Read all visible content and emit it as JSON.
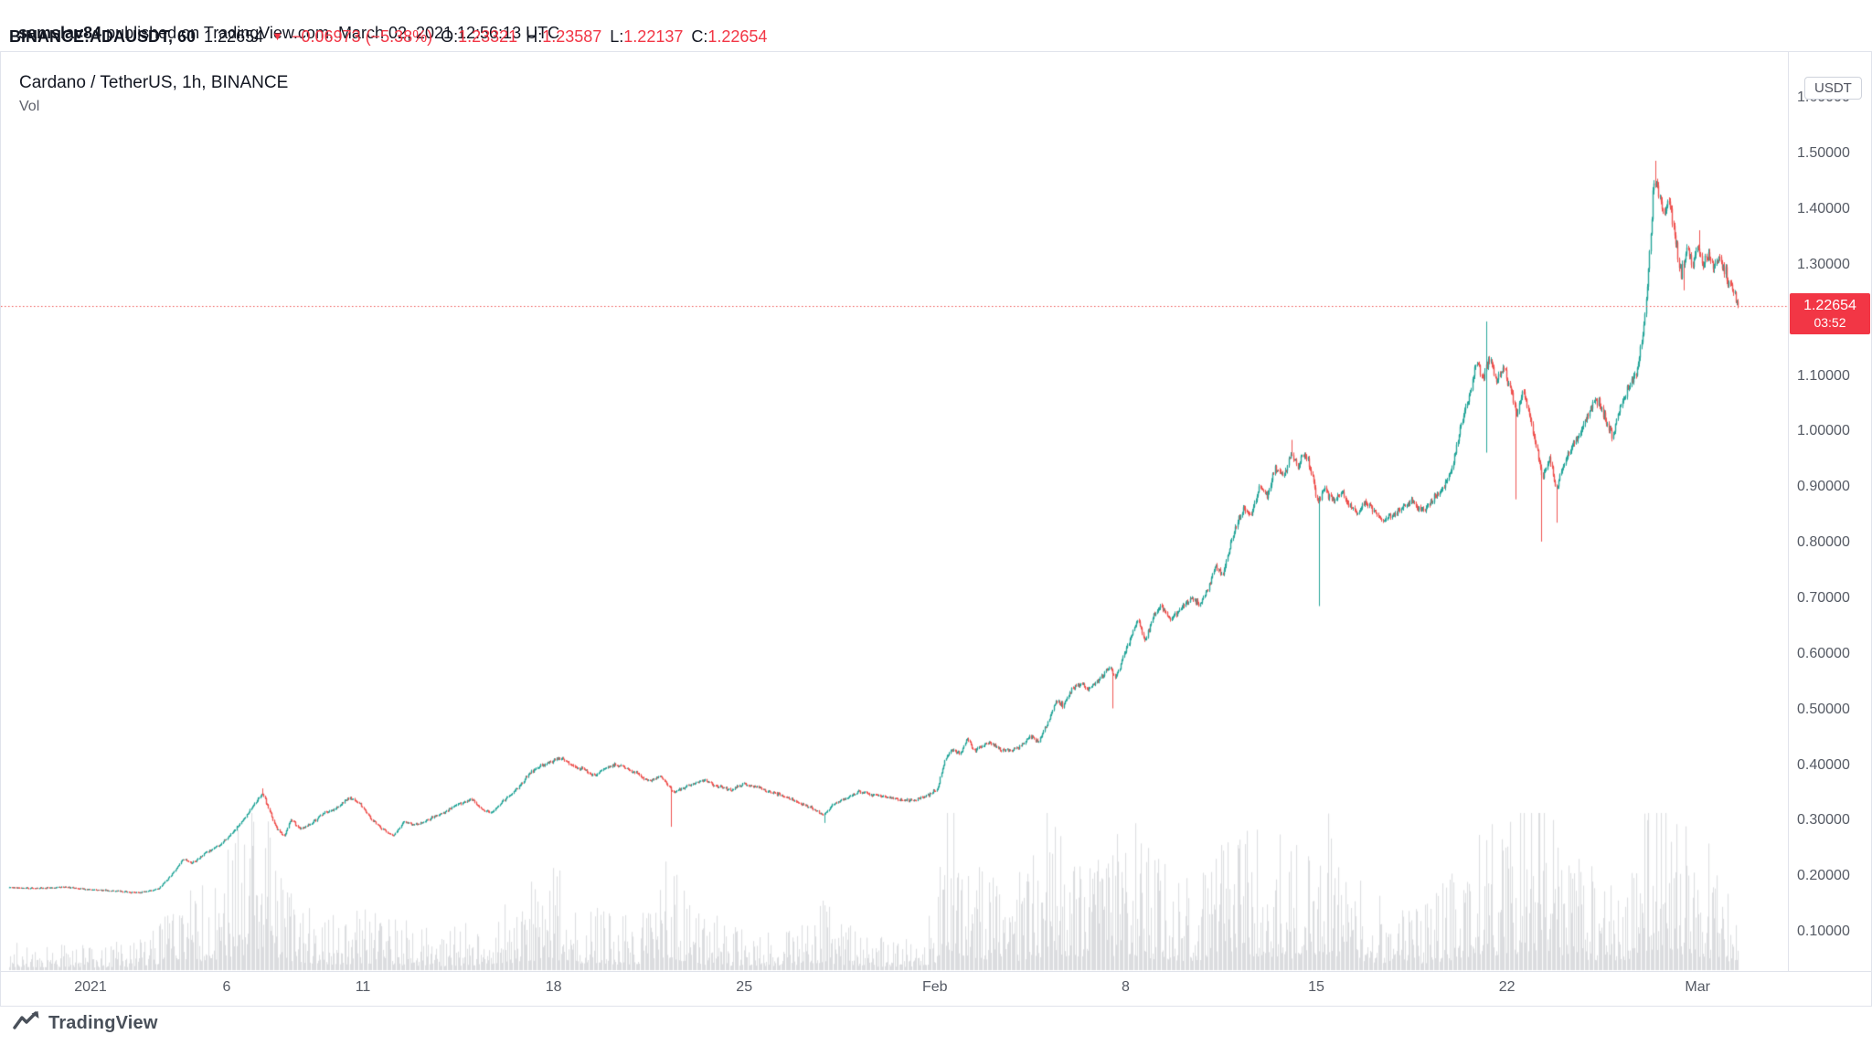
{
  "header": {
    "line1": {
      "user": "samslav84",
      "rest": " published on TradingView.com, March 02, 2021 12:56:13 UTC"
    },
    "line2": {
      "symbol": "BINANCE:ADAUSDT, 60",
      "price": "1.22654",
      "direction": "▼",
      "change": "−0.06973 (−5.38%)",
      "ohlc": [
        {
          "k": "O:",
          "v": "1.23321"
        },
        {
          "k": "H:",
          "v": "1.23587"
        },
        {
          "k": "L:",
          "v": "1.22137"
        },
        {
          "k": "C:",
          "v": "1.22654"
        }
      ]
    }
  },
  "legend": {
    "title": "Cardano / TetherUS, 1h, BINANCE",
    "indicator": "Vol"
  },
  "price_axis": {
    "currency_button": "USDT",
    "labels": [
      {
        "text": "1.60000",
        "price": 1.6
      },
      {
        "text": "1.50000",
        "price": 1.5
      },
      {
        "text": "1.40000",
        "price": 1.4
      },
      {
        "text": "1.30000",
        "price": 1.3
      },
      {
        "text": "1.20000",
        "price": 1.2
      },
      {
        "text": "1.10000",
        "price": 1.1
      },
      {
        "text": "1.00000",
        "price": 1.0
      },
      {
        "text": "0.90000",
        "price": 0.9
      },
      {
        "text": "0.80000",
        "price": 0.8
      },
      {
        "text": "0.70000",
        "price": 0.7
      },
      {
        "text": "0.60000",
        "price": 0.6
      },
      {
        "text": "0.50000",
        "price": 0.5
      },
      {
        "text": "0.40000",
        "price": 0.4
      },
      {
        "text": "0.30000",
        "price": 0.3
      },
      {
        "text": "0.20000",
        "price": 0.2
      },
      {
        "text": "0.10000",
        "price": 0.1
      }
    ],
    "last_price_badge": {
      "price": "1.22654",
      "countdown": "03:52",
      "color": "#f23645"
    }
  },
  "time_axis": {
    "labels": [
      {
        "text": "2021",
        "t": 3
      },
      {
        "text": "6",
        "t": 8
      },
      {
        "text": "11",
        "t": 13
      },
      {
        "text": "18",
        "t": 20
      },
      {
        "text": "25",
        "t": 27
      },
      {
        "text": "Feb",
        "t": 34
      },
      {
        "text": "8",
        "t": 41
      },
      {
        "text": "15",
        "t": 48
      },
      {
        "text": "22",
        "t": 55
      },
      {
        "text": "Mar",
        "t": 62
      }
    ]
  },
  "footer": {
    "brand": "TradingView"
  },
  "chart_data": {
    "type": "candlestick+volume",
    "title": "Cardano / TetherUS, 1h, BINANCE",
    "exchange": "BINANCE",
    "symbol": "ADAUSDT",
    "interval": "1h",
    "x_axis": {
      "start": "2020-12-29 00:00",
      "end": "2021-03-02 12:00",
      "unit": "days_since_start",
      "total_days": 63.5
    },
    "y_axis": {
      "min_visible": 0.03,
      "max_visible": 1.68,
      "tick_step": 0.1,
      "currency": "USDT"
    },
    "last_price": 1.22654,
    "open": 1.23321,
    "high": 1.23587,
    "low": 1.22137,
    "close": 1.22654,
    "change": -0.06973,
    "change_pct": -5.38,
    "price_path": [
      [
        0,
        0.18
      ],
      [
        1,
        0.178
      ],
      [
        2,
        0.181
      ],
      [
        3,
        0.176
      ],
      [
        4,
        0.173
      ],
      [
        4.8,
        0.17
      ],
      [
        5.5,
        0.178
      ],
      [
        6.0,
        0.205
      ],
      [
        6.4,
        0.232
      ],
      [
        6.7,
        0.222
      ],
      [
        7.2,
        0.242
      ],
      [
        7.6,
        0.252
      ],
      [
        8.0,
        0.268
      ],
      [
        8.5,
        0.295
      ],
      [
        9.0,
        0.33
      ],
      [
        9.3,
        0.349
      ],
      [
        9.5,
        0.325
      ],
      [
        9.8,
        0.288
      ],
      [
        10.1,
        0.272
      ],
      [
        10.35,
        0.303
      ],
      [
        10.7,
        0.285
      ],
      [
        11.1,
        0.295
      ],
      [
        11.5,
        0.312
      ],
      [
        12.0,
        0.322
      ],
      [
        12.5,
        0.342
      ],
      [
        12.9,
        0.33
      ],
      [
        13.3,
        0.302
      ],
      [
        13.7,
        0.285
      ],
      [
        14.1,
        0.273
      ],
      [
        14.5,
        0.298
      ],
      [
        15.0,
        0.292
      ],
      [
        15.5,
        0.305
      ],
      [
        16.0,
        0.316
      ],
      [
        16.5,
        0.33
      ],
      [
        17.0,
        0.338
      ],
      [
        17.3,
        0.322
      ],
      [
        17.7,
        0.314
      ],
      [
        18.2,
        0.338
      ],
      [
        18.7,
        0.36
      ],
      [
        19.1,
        0.385
      ],
      [
        19.5,
        0.398
      ],
      [
        20.0,
        0.408
      ],
      [
        20.3,
        0.412
      ],
      [
        20.7,
        0.398
      ],
      [
        21.1,
        0.392
      ],
      [
        21.5,
        0.38
      ],
      [
        21.9,
        0.395
      ],
      [
        22.3,
        0.401
      ],
      [
        22.7,
        0.393
      ],
      [
        23.1,
        0.384
      ],
      [
        23.5,
        0.371
      ],
      [
        23.9,
        0.381
      ],
      [
        24.2,
        0.363
      ],
      [
        24.4,
        0.35
      ],
      [
        24.7,
        0.358
      ],
      [
        25.1,
        0.366
      ],
      [
        25.5,
        0.373
      ],
      [
        26.0,
        0.361
      ],
      [
        26.5,
        0.356
      ],
      [
        27.0,
        0.367
      ],
      [
        27.5,
        0.359
      ],
      [
        28.0,
        0.351
      ],
      [
        28.5,
        0.343
      ],
      [
        29.0,
        0.332
      ],
      [
        29.5,
        0.322
      ],
      [
        29.9,
        0.31
      ],
      [
        30.3,
        0.331
      ],
      [
        30.8,
        0.342
      ],
      [
        31.2,
        0.352
      ],
      [
        31.7,
        0.347
      ],
      [
        32.2,
        0.342
      ],
      [
        32.7,
        0.337
      ],
      [
        33.2,
        0.336
      ],
      [
        33.7,
        0.345
      ],
      [
        34.1,
        0.358
      ],
      [
        34.35,
        0.408
      ],
      [
        34.6,
        0.428
      ],
      [
        34.9,
        0.42
      ],
      [
        35.2,
        0.448
      ],
      [
        35.45,
        0.425
      ],
      [
        35.7,
        0.434
      ],
      [
        36.0,
        0.441
      ],
      [
        36.4,
        0.428
      ],
      [
        36.8,
        0.424
      ],
      [
        37.2,
        0.438
      ],
      [
        37.5,
        0.452
      ],
      [
        37.8,
        0.441
      ],
      [
        38.1,
        0.472
      ],
      [
        38.45,
        0.518
      ],
      [
        38.7,
        0.508
      ],
      [
        39.0,
        0.534
      ],
      [
        39.3,
        0.548
      ],
      [
        39.6,
        0.536
      ],
      [
        40.0,
        0.552
      ],
      [
        40.4,
        0.576
      ],
      [
        40.6,
        0.556
      ],
      [
        40.9,
        0.595
      ],
      [
        41.2,
        0.632
      ],
      [
        41.45,
        0.662
      ],
      [
        41.7,
        0.622
      ],
      [
        42.0,
        0.665
      ],
      [
        42.3,
        0.688
      ],
      [
        42.6,
        0.662
      ],
      [
        43.0,
        0.681
      ],
      [
        43.4,
        0.701
      ],
      [
        43.7,
        0.688
      ],
      [
        44.0,
        0.716
      ],
      [
        44.3,
        0.758
      ],
      [
        44.55,
        0.742
      ],
      [
        44.8,
        0.792
      ],
      [
        45.1,
        0.836
      ],
      [
        45.35,
        0.866
      ],
      [
        45.6,
        0.848
      ],
      [
        45.9,
        0.902
      ],
      [
        46.2,
        0.884
      ],
      [
        46.5,
        0.938
      ],
      [
        46.8,
        0.92
      ],
      [
        47.05,
        0.958
      ],
      [
        47.3,
        0.94
      ],
      [
        47.6,
        0.958
      ],
      [
        47.85,
        0.918
      ],
      [
        48.05,
        0.872
      ],
      [
        48.3,
        0.898
      ],
      [
        48.6,
        0.876
      ],
      [
        48.9,
        0.891
      ],
      [
        49.2,
        0.868
      ],
      [
        49.5,
        0.852
      ],
      [
        49.8,
        0.874
      ],
      [
        50.1,
        0.858
      ],
      [
        50.45,
        0.838
      ],
      [
        50.8,
        0.85
      ],
      [
        51.1,
        0.862
      ],
      [
        51.5,
        0.873
      ],
      [
        51.9,
        0.858
      ],
      [
        52.3,
        0.878
      ],
      [
        52.7,
        0.902
      ],
      [
        53.0,
        0.938
      ],
      [
        53.3,
        1.01
      ],
      [
        53.6,
        1.065
      ],
      [
        53.9,
        1.128
      ],
      [
        54.1,
        1.092
      ],
      [
        54.35,
        1.135
      ],
      [
        54.6,
        1.088
      ],
      [
        54.85,
        1.118
      ],
      [
        55.1,
        1.082
      ],
      [
        55.35,
        1.028
      ],
      [
        55.6,
        1.072
      ],
      [
        55.85,
        1.022
      ],
      [
        56.1,
        0.962
      ],
      [
        56.3,
        0.918
      ],
      [
        56.55,
        0.952
      ],
      [
        56.8,
        0.898
      ],
      [
        57.05,
        0.938
      ],
      [
        57.35,
        0.972
      ],
      [
        57.65,
        0.992
      ],
      [
        57.95,
        1.028
      ],
      [
        58.25,
        1.062
      ],
      [
        58.55,
        1.032
      ],
      [
        58.85,
        0.992
      ],
      [
        59.15,
        1.042
      ],
      [
        59.45,
        1.078
      ],
      [
        59.75,
        1.108
      ],
      [
        60.0,
        1.178
      ],
      [
        60.2,
        1.292
      ],
      [
        60.38,
        1.452
      ],
      [
        60.55,
        1.428
      ],
      [
        60.75,
        1.392
      ],
      [
        60.95,
        1.422
      ],
      [
        61.15,
        1.348
      ],
      [
        61.4,
        1.282
      ],
      [
        61.6,
        1.328
      ],
      [
        61.8,
        1.302
      ],
      [
        62.0,
        1.338
      ],
      [
        62.2,
        1.302
      ],
      [
        62.4,
        1.318
      ],
      [
        62.6,
        1.295
      ],
      [
        62.8,
        1.312
      ],
      [
        63.0,
        1.288
      ],
      [
        63.2,
        1.262
      ],
      [
        63.35,
        1.242
      ],
      [
        63.5,
        1.2265
      ]
    ],
    "wick_events": [
      {
        "t": 9.3,
        "hi": 0.358
      },
      {
        "t": 24.3,
        "lo": 0.289
      },
      {
        "t": 29.9,
        "lo": 0.296
      },
      {
        "t": 40.5,
        "lo": 0.502
      },
      {
        "t": 47.1,
        "hi": 0.985
      },
      {
        "t": 48.07,
        "lo": 0.686
      },
      {
        "t": 54.2,
        "hi": 1.198,
        "lo": 0.962
      },
      {
        "t": 55.3,
        "lo": 0.878
      },
      {
        "t": 56.25,
        "lo": 0.802
      },
      {
        "t": 56.8,
        "lo": 0.836
      },
      {
        "t": 60.4,
        "hi": 1.487
      },
      {
        "t": 61.45,
        "lo": 1.254
      },
      {
        "t": 62.05,
        "hi": 1.362
      }
    ],
    "volume_profile": [
      [
        0,
        22
      ],
      [
        3,
        18
      ],
      [
        5,
        22
      ],
      [
        6,
        48
      ],
      [
        6.5,
        72
      ],
      [
        7,
        58
      ],
      [
        8,
        88
      ],
      [
        9,
        118
      ],
      [
        9.5,
        128
      ],
      [
        10,
        78
      ],
      [
        11,
        46
      ],
      [
        12,
        38
      ],
      [
        13,
        44
      ],
      [
        14,
        40
      ],
      [
        15,
        30
      ],
      [
        16,
        28
      ],
      [
        17,
        34
      ],
      [
        18,
        42
      ],
      [
        19,
        64
      ],
      [
        20,
        76
      ],
      [
        21,
        48
      ],
      [
        22,
        42
      ],
      [
        23,
        38
      ],
      [
        24.3,
        88
      ],
      [
        25,
        44
      ],
      [
        26,
        32
      ],
      [
        27,
        30
      ],
      [
        28,
        26
      ],
      [
        29,
        36
      ],
      [
        29.9,
        54
      ],
      [
        31,
        28
      ],
      [
        32,
        24
      ],
      [
        33,
        22
      ],
      [
        34,
        42
      ],
      [
        34.4,
        158
      ],
      [
        34.8,
        118
      ],
      [
        35.3,
        92
      ],
      [
        36,
        72
      ],
      [
        37,
        64
      ],
      [
        37.6,
        86
      ],
      [
        38.5,
        114
      ],
      [
        39,
        92
      ],
      [
        40,
        84
      ],
      [
        40.6,
        104
      ],
      [
        41.3,
        106
      ],
      [
        42,
        80
      ],
      [
        43,
        64
      ],
      [
        44,
        72
      ],
      [
        44.8,
        96
      ],
      [
        45.5,
        104
      ],
      [
        46.3,
        88
      ],
      [
        47,
        82
      ],
      [
        47.9,
        96
      ],
      [
        48.1,
        130
      ],
      [
        49,
        74
      ],
      [
        50,
        56
      ],
      [
        51,
        44
      ],
      [
        52,
        48
      ],
      [
        53,
        70
      ],
      [
        53.6,
        96
      ],
      [
        54.3,
        112
      ],
      [
        55,
        96
      ],
      [
        55.4,
        118
      ],
      [
        56.25,
        144
      ],
      [
        57,
        94
      ],
      [
        58,
        74
      ],
      [
        59,
        64
      ],
      [
        59.8,
        86
      ],
      [
        60.3,
        134
      ],
      [
        60.6,
        148
      ],
      [
        61,
        126
      ],
      [
        61.5,
        108
      ],
      [
        62,
        98
      ],
      [
        62.5,
        84
      ],
      [
        63,
        70
      ],
      [
        63.5,
        48
      ]
    ],
    "colors": {
      "up": "#26a69a",
      "down": "#ef5350",
      "volume": "rgba(120,123,134,0.25)",
      "dotted_line": "#ef5350",
      "badge": "#f23645"
    },
    "legend_position": "top-left",
    "grid": false
  }
}
